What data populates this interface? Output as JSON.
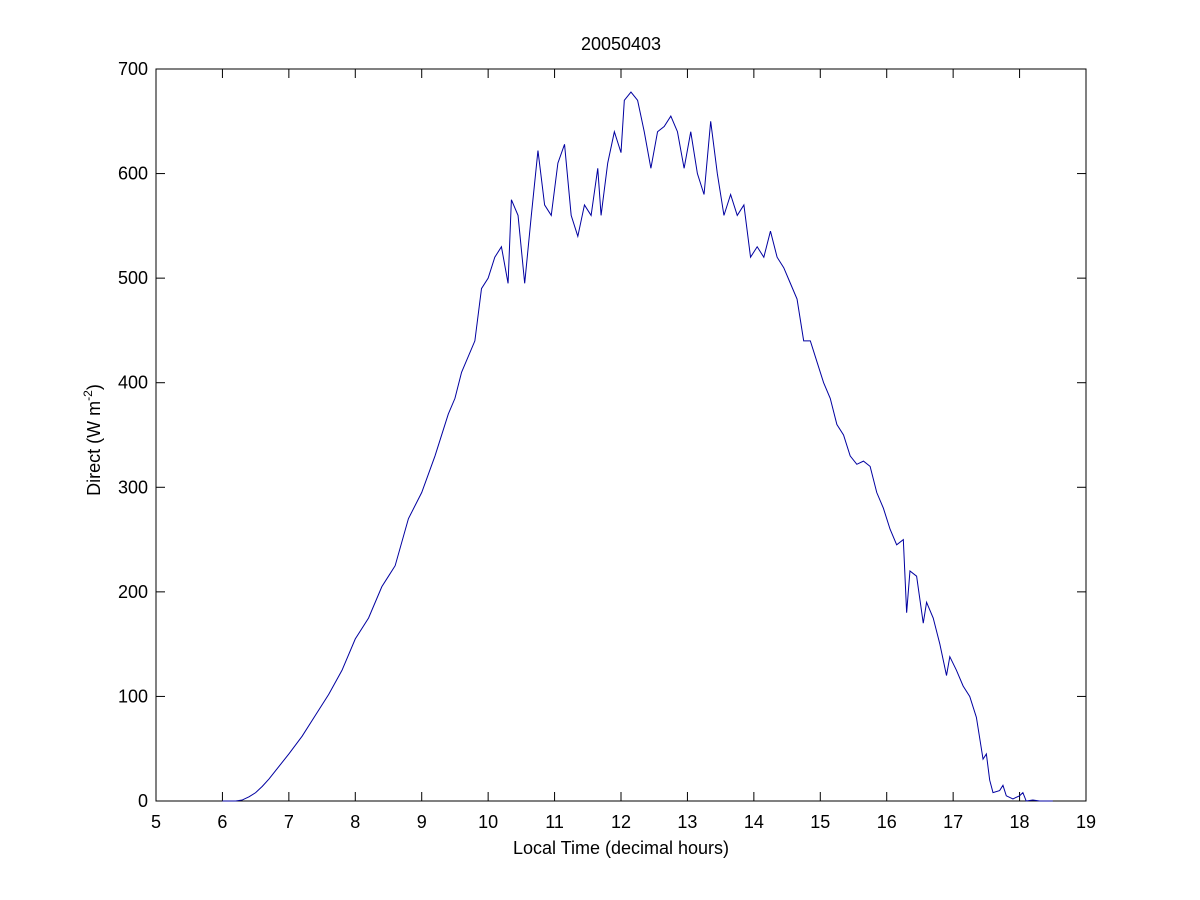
{
  "chart_data": {
    "type": "line",
    "title": "20050403",
    "x_label": "Local Time (decimal hours)",
    "y_label": [
      "Direct (W m",
      "-2",
      ")"
    ],
    "xlim": [
      5,
      19
    ],
    "xticks": [
      5,
      6,
      7,
      8,
      9,
      10,
      11,
      12,
      13,
      14,
      15,
      16,
      17,
      18,
      19
    ],
    "ylim": [
      0,
      700
    ],
    "yticks": [
      0,
      100,
      200,
      300,
      400,
      500,
      600,
      700
    ],
    "grid": false,
    "series": [
      {
        "color": "#0000a0",
        "x": [
          6.0,
          6.2,
          6.3,
          6.4,
          6.5,
          6.6,
          6.7,
          6.8,
          6.9,
          7.0,
          7.2,
          7.4,
          7.6,
          7.8,
          8.0,
          8.2,
          8.4,
          8.5,
          8.6,
          8.8,
          9.0,
          9.2,
          9.4,
          9.5,
          9.6,
          9.8,
          9.9,
          10.0,
          10.1,
          10.2,
          10.3,
          10.35,
          10.45,
          10.55,
          10.65,
          10.75,
          10.85,
          10.95,
          11.05,
          11.15,
          11.25,
          11.35,
          11.45,
          11.55,
          11.65,
          11.7,
          11.8,
          11.9,
          12.0,
          12.05,
          12.15,
          12.25,
          12.35,
          12.45,
          12.55,
          12.65,
          12.75,
          12.85,
          12.95,
          13.05,
          13.15,
          13.25,
          13.35,
          13.45,
          13.55,
          13.65,
          13.75,
          13.85,
          13.95,
          14.05,
          14.15,
          14.25,
          14.35,
          14.45,
          14.55,
          14.65,
          14.75,
          14.85,
          14.95,
          15.05,
          15.15,
          15.25,
          15.35,
          15.45,
          15.55,
          15.65,
          15.75,
          15.85,
          15.95,
          16.05,
          16.15,
          16.25,
          16.3,
          16.35,
          16.45,
          16.55,
          16.6,
          16.7,
          16.8,
          16.9,
          16.95,
          17.05,
          17.15,
          17.25,
          17.35,
          17.45,
          17.5,
          17.55,
          17.6,
          17.7,
          17.75,
          17.8,
          17.9,
          18.0,
          18.05,
          18.1,
          18.2,
          18.3,
          18.5
        ],
        "values": [
          0,
          0,
          1,
          4,
          8,
          14,
          21,
          29,
          37,
          45,
          62,
          82,
          102,
          125,
          155,
          175,
          205,
          215,
          225,
          270,
          295,
          330,
          370,
          385,
          410,
          440,
          490,
          500,
          520,
          530,
          495,
          575,
          560,
          495,
          560,
          622,
          570,
          560,
          610,
          628,
          560,
          540,
          570,
          560,
          605,
          560,
          610,
          640,
          620,
          670,
          678,
          670,
          640,
          605,
          640,
          645,
          655,
          640,
          605,
          640,
          600,
          580,
          650,
          600,
          560,
          580,
          560,
          570,
          520,
          530,
          520,
          545,
          520,
          510,
          495,
          480,
          440,
          440,
          420,
          400,
          385,
          360,
          350,
          330,
          322,
          325,
          320,
          295,
          280,
          260,
          245,
          250,
          180,
          220,
          215,
          170,
          190,
          175,
          150,
          120,
          138,
          125,
          110,
          100,
          80,
          40,
          45,
          20,
          8,
          10,
          15,
          5,
          2,
          5,
          8,
          0,
          1,
          0,
          0
        ]
      }
    ]
  }
}
